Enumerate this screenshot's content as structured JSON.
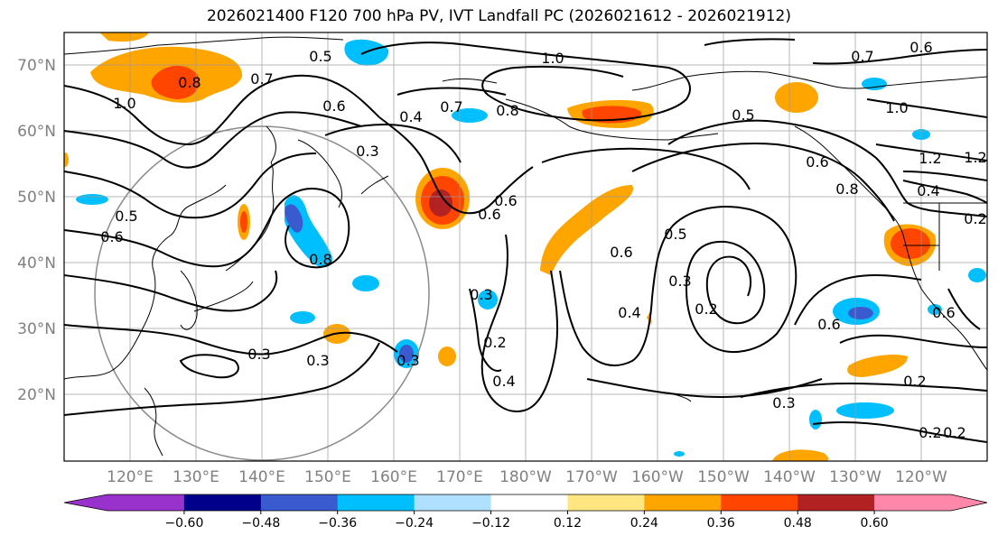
{
  "title": "2026021400 F120 700 hPa PV, IVT Landfall PC (2026021612 - 2026021912)",
  "lat_labels": [
    "70°N",
    "60°N",
    "50°N",
    "40°N",
    "30°N",
    "20°N"
  ],
  "lon_labels": [
    "120°E",
    "130°E",
    "140°E",
    "150°E",
    "160°E",
    "170°E",
    "180°W",
    "170°W",
    "160°W",
    "150°W",
    "140°W",
    "130°W",
    "120°W"
  ],
  "colorbar": {
    "colors": [
      "#9932cc",
      "#00008b",
      "#3a5bd0",
      "#00bfff",
      "#b0e0ff",
      "#ffffff",
      "#ffe680",
      "#ffa500",
      "#ff4500",
      "#b22222",
      "#ff88aa"
    ],
    "tick_labels": [
      "-0.60",
      "-0.48",
      "-0.36",
      "-0.24",
      "-0.12",
      "0.12",
      "0.24",
      "0.36",
      "0.48",
      "0.60"
    ],
    "under_color": "#9932cc",
    "over_color": "#ff88aa"
  },
  "contour_labels": [
    "0.5",
    "0.8",
    "0.7",
    "1.0",
    "0.6",
    "0.4",
    "0.3",
    "1.0",
    "0.7",
    "0.8",
    "0.6",
    "0.5",
    "0.7",
    "0.6",
    "1.0",
    "1.2",
    "0.4",
    "0.6",
    "0.8",
    "0.5",
    "0.6",
    "0.8",
    "0.5",
    "0.3",
    "0.3",
    "0.3",
    "0.3",
    "0.2",
    "0.4",
    "0.4",
    "0.6",
    "0.2",
    "0.3",
    "0.6",
    "0.2",
    "0.3",
    "0.2",
    "0.6",
    "0.2",
    "0.2",
    "0.6",
    "1.2"
  ],
  "colors": {
    "contour": "#000000",
    "coast": "#000000",
    "grid": "#808080"
  }
}
